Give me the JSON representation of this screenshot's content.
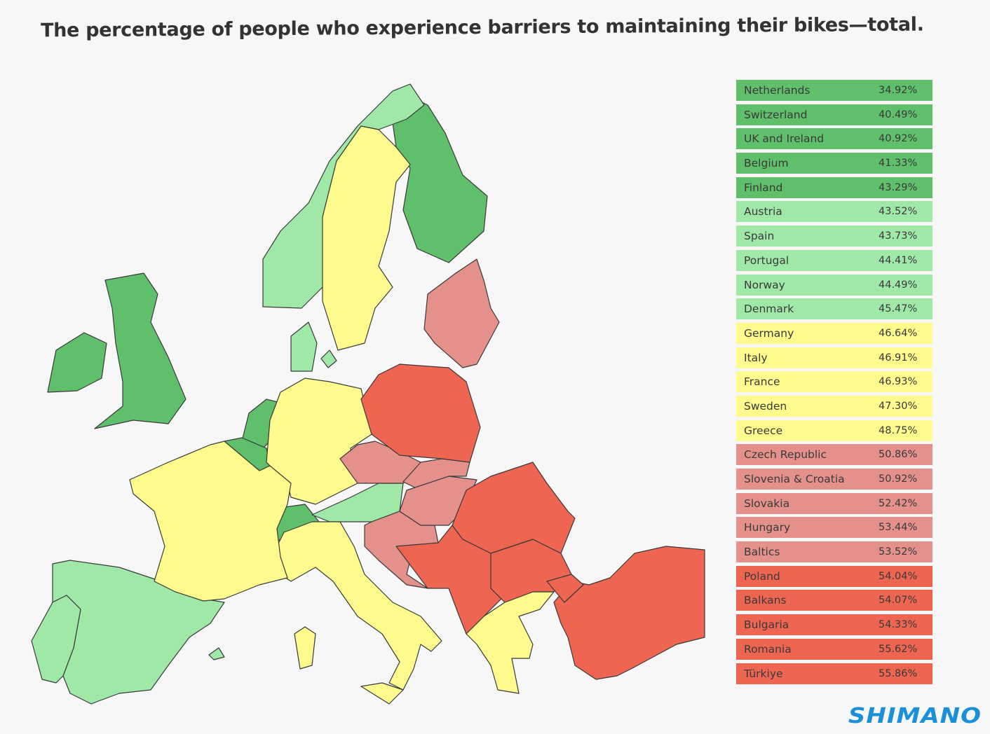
{
  "title": "The percentage of people who experience barriers to maintaining their bikes—total.",
  "colors": {
    "dark_green": "#5fbf6a",
    "light_green": "#a0e8a8",
    "yellow": "#fdfa8e",
    "pink": "#e3918a",
    "red": "#ee6552",
    "background": "#f7f7f7",
    "logo": "#1b8fd8"
  },
  "ranking": [
    {
      "region": "Netherlands",
      "value": "34.92%",
      "tier": "dark_green"
    },
    {
      "region": "Switzerland",
      "value": "40.49%",
      "tier": "dark_green"
    },
    {
      "region": "UK and Ireland",
      "value": "40.92%",
      "tier": "dark_green"
    },
    {
      "region": "Belgium",
      "value": "41.33%",
      "tier": "dark_green"
    },
    {
      "region": "Finland",
      "value": "43.29%",
      "tier": "dark_green"
    },
    {
      "region": "Austria",
      "value": "43.52%",
      "tier": "light_green"
    },
    {
      "region": "Spain",
      "value": "43.73%",
      "tier": "light_green"
    },
    {
      "region": "Portugal",
      "value": "44.41%",
      "tier": "light_green"
    },
    {
      "region": "Norway",
      "value": "44.49%",
      "tier": "light_green"
    },
    {
      "region": "Denmark",
      "value": "45.47%",
      "tier": "light_green"
    },
    {
      "region": "Germany",
      "value": "46.64%",
      "tier": "yellow"
    },
    {
      "region": "Italy",
      "value": "46.91%",
      "tier": "yellow"
    },
    {
      "region": "France",
      "value": "46.93%",
      "tier": "yellow"
    },
    {
      "region": "Sweden",
      "value": "47.30%",
      "tier": "yellow"
    },
    {
      "region": "Greece",
      "value": "48.75%",
      "tier": "yellow"
    },
    {
      "region": "Czech Republic",
      "value": "50.86%",
      "tier": "pink"
    },
    {
      "region": "Slovenia & Croatia",
      "value": "50.92%",
      "tier": "pink"
    },
    {
      "region": "Slovakia",
      "value": "52.42%",
      "tier": "pink"
    },
    {
      "region": "Hungary",
      "value": "53.44%",
      "tier": "pink"
    },
    {
      "region": "Baltics",
      "value": "53.52%",
      "tier": "pink"
    },
    {
      "region": "Poland",
      "value": "54.04%",
      "tier": "red"
    },
    {
      "region": "Balkans",
      "value": "54.07%",
      "tier": "red"
    },
    {
      "region": "Bulgaria",
      "value": "54.33%",
      "tier": "red"
    },
    {
      "region": "Romania",
      "value": "55.62%",
      "tier": "red"
    },
    {
      "region": "Türkiye",
      "value": "55.86%",
      "tier": "red"
    }
  ],
  "logo": "SHIMANO"
}
